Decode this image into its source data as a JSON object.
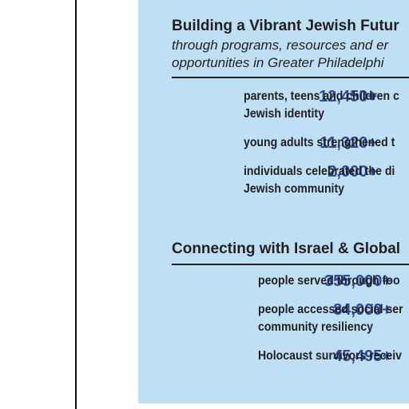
{
  "section1": {
    "title": "Building a Vibrant Jewish Futur",
    "subtitle_lines": [
      "through programs, resources and er",
      "opportunities in Greater Philadelphi"
    ],
    "stats": [
      {
        "number": "12,450+",
        "lines": [
          "parents, teens and children c",
          "Jewish identity"
        ]
      },
      {
        "number": "11,320+",
        "lines": [
          "young adults strengthened t"
        ]
      },
      {
        "number": "2,000+",
        "lines": [
          "individuals celebrated the di",
          "Jewish community"
        ]
      }
    ]
  },
  "section2": {
    "title": "Connecting with Israel & Global",
    "stats": [
      {
        "number": "355,000+",
        "lines": [
          "people served through foo"
        ]
      },
      {
        "number": "84,000+",
        "lines": [
          "people accessed social ser",
          "community resiliency"
        ]
      },
      {
        "number": "45,495+",
        "lines": [
          "Holocaust survivors receiv"
        ]
      }
    ]
  }
}
